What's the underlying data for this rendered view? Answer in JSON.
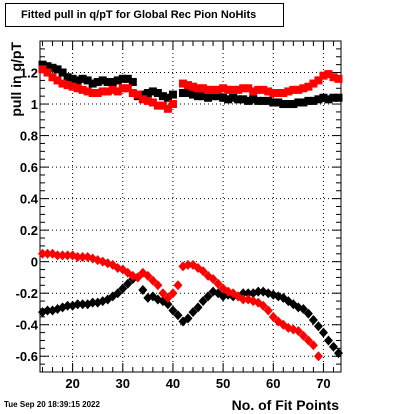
{
  "title": "Fitted pull in q/pT for Global Rec Pion NoHits",
  "timestamp": "Tue Sep 20 18:39:15 2022",
  "chart_data": {
    "type": "scatter",
    "title": "Fitted pull in q/pT for Global Rec Pion NoHits",
    "xlabel": "No. of Fit Points",
    "ylabel": "pull in q/pT",
    "xlim": [
      13.5,
      73.5
    ],
    "ylim": [
      -0.7,
      1.4
    ],
    "grid": true,
    "x_ticks": [
      "20",
      "30",
      "40",
      "50",
      "60",
      "70"
    ],
    "y_ticks": [
      "-0.6",
      "-0.4",
      "-0.2",
      "0",
      "0.2",
      "0.4",
      "0.6",
      "0.8",
      "1",
      "1.2"
    ],
    "colors": {
      "black": "#000000",
      "red": "#ff0000"
    },
    "series": [
      {
        "color": "#000000",
        "marker": "square",
        "x": [
          14,
          15,
          16,
          17,
          18,
          19,
          20,
          21,
          22,
          23,
          24,
          25,
          26,
          27,
          28,
          29,
          30,
          31,
          32,
          33,
          34,
          35,
          36,
          37,
          38,
          39,
          40,
          42,
          43,
          44,
          45,
          46,
          47,
          48,
          49,
          50,
          51,
          52,
          53,
          54,
          55,
          56,
          57,
          58,
          59,
          60,
          61,
          62,
          63,
          64,
          65,
          66,
          67,
          68,
          69,
          70,
          71,
          72,
          73
        ],
        "y": [
          1.25,
          1.24,
          1.23,
          1.22,
          1.2,
          1.17,
          1.16,
          1.15,
          1.16,
          1.15,
          1.13,
          1.14,
          1.15,
          1.14,
          1.14,
          1.15,
          1.16,
          1.16,
          1.14,
          1.05,
          1.06,
          1.07,
          1.08,
          1.07,
          1.05,
          1.04,
          1.06,
          1.07,
          1.07,
          1.06,
          1.05,
          1.05,
          1.04,
          1.05,
          1.05,
          1.04,
          1.03,
          1.04,
          1.03,
          1.03,
          1.02,
          1.03,
          1.02,
          1.02,
          1.02,
          1.01,
          1.01,
          1.0,
          1.0,
          1.0,
          1.01,
          1.01,
          1.02,
          1.02,
          1.03,
          1.04,
          1.03,
          1.04,
          1.04
        ]
      },
      {
        "color": "#ff0000",
        "marker": "square",
        "x": [
          14,
          15,
          16,
          17,
          18,
          19,
          20,
          21,
          22,
          23,
          24,
          25,
          26,
          27,
          28,
          29,
          30,
          31,
          32,
          33,
          34,
          35,
          36,
          37,
          38,
          39,
          40,
          42,
          43,
          44,
          45,
          46,
          47,
          48,
          49,
          50,
          51,
          52,
          53,
          54,
          55,
          56,
          57,
          58,
          59,
          60,
          61,
          62,
          63,
          64,
          65,
          66,
          67,
          68,
          69,
          70,
          71,
          72,
          73
        ],
        "y": [
          1.22,
          1.2,
          1.17,
          1.15,
          1.13,
          1.12,
          1.11,
          1.1,
          1.09,
          1.08,
          1.07,
          1.07,
          1.08,
          1.08,
          1.09,
          1.08,
          1.1,
          1.1,
          1.07,
          1.06,
          1.03,
          1.02,
          1.01,
          0.99,
          0.99,
          0.97,
          1.0,
          1.13,
          1.12,
          1.11,
          1.1,
          1.1,
          1.09,
          1.09,
          1.09,
          1.1,
          1.09,
          1.09,
          1.09,
          1.1,
          1.1,
          1.08,
          1.09,
          1.09,
          1.08,
          1.07,
          1.07,
          1.07,
          1.08,
          1.09,
          1.09,
          1.1,
          1.11,
          1.13,
          1.15,
          1.18,
          1.19,
          1.17,
          1.16
        ]
      },
      {
        "color": "#000000",
        "marker": "diamond",
        "x": [
          14,
          15,
          16,
          17,
          18,
          19,
          20,
          21,
          22,
          23,
          24,
          25,
          26,
          27,
          28,
          29,
          30,
          31,
          32,
          33,
          34,
          35,
          36,
          37,
          38,
          39,
          40,
          41,
          42,
          43,
          44,
          45,
          46,
          47,
          48,
          49,
          50,
          51,
          52,
          53,
          54,
          55,
          56,
          57,
          58,
          59,
          60,
          61,
          62,
          63,
          64,
          65,
          66,
          67,
          68,
          69,
          70,
          71,
          72,
          73
        ],
        "y": [
          -0.32,
          -0.31,
          -0.31,
          -0.3,
          -0.29,
          -0.28,
          -0.28,
          -0.27,
          -0.27,
          -0.27,
          -0.26,
          -0.26,
          -0.25,
          -0.24,
          -0.22,
          -0.2,
          -0.17,
          -0.14,
          -0.11,
          -0.1,
          -0.18,
          -0.23,
          -0.22,
          -0.24,
          -0.25,
          -0.27,
          -0.31,
          -0.34,
          -0.38,
          -0.36,
          -0.32,
          -0.29,
          -0.25,
          -0.22,
          -0.19,
          -0.2,
          -0.22,
          -0.21,
          -0.22,
          -0.22,
          -0.2,
          -0.2,
          -0.2,
          -0.19,
          -0.19,
          -0.2,
          -0.21,
          -0.22,
          -0.23,
          -0.25,
          -0.27,
          -0.29,
          -0.3,
          -0.33,
          -0.37,
          -0.41,
          -0.45,
          -0.5,
          -0.54,
          -0.58
        ]
      },
      {
        "color": "#ff0000",
        "marker": "diamond",
        "x": [
          14,
          15,
          16,
          17,
          18,
          19,
          20,
          21,
          22,
          23,
          24,
          25,
          26,
          27,
          28,
          29,
          30,
          31,
          32,
          33,
          34,
          35,
          36,
          37,
          38,
          39,
          40,
          41,
          42,
          43,
          44,
          45,
          46,
          47,
          48,
          49,
          50,
          51,
          52,
          53,
          54,
          55,
          56,
          57,
          58,
          59,
          60,
          61,
          62,
          63,
          64,
          65,
          66,
          67,
          68,
          69
        ],
        "y": [
          0.05,
          0.05,
          0.05,
          0.04,
          0.04,
          0.04,
          0.04,
          0.03,
          0.03,
          0.03,
          0.02,
          0.01,
          0.0,
          -0.01,
          -0.02,
          -0.04,
          -0.05,
          -0.07,
          -0.09,
          -0.1,
          -0.07,
          -0.09,
          -0.12,
          -0.15,
          -0.2,
          -0.23,
          -0.2,
          -0.15,
          -0.03,
          -0.02,
          -0.02,
          -0.04,
          -0.06,
          -0.09,
          -0.11,
          -0.14,
          -0.17,
          -0.19,
          -0.2,
          -0.22,
          -0.24,
          -0.24,
          -0.25,
          -0.26,
          -0.28,
          -0.31,
          -0.35,
          -0.38,
          -0.4,
          -0.42,
          -0.43,
          -0.44,
          -0.47,
          -0.5,
          -0.53,
          -0.6
        ]
      }
    ]
  }
}
